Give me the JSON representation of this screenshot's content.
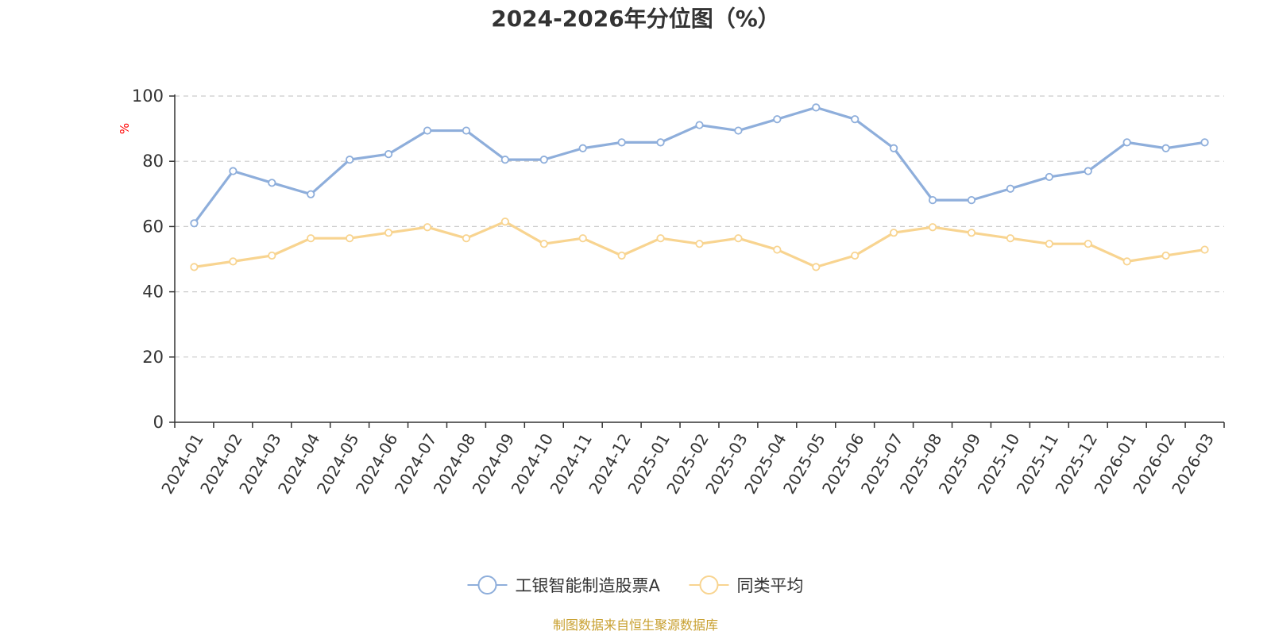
{
  "chart_data": {
    "type": "line",
    "title": "2024-2026年分位图（%）",
    "ylabel": "%",
    "xlabel": "",
    "ylim": [
      0,
      100
    ],
    "yticks": [
      0,
      20,
      40,
      60,
      80,
      100
    ],
    "grid": true,
    "legend_position": "bottom",
    "categories": [
      "2024-01",
      "2024-02",
      "2024-03",
      "2024-04",
      "2024-05",
      "2024-06",
      "2024-07",
      "2024-08",
      "2024-09",
      "2024-10",
      "2024-11",
      "2024-12",
      "2025-01",
      "2025-02",
      "2025-03",
      "2025-04",
      "2025-05",
      "2025-06",
      "2025-07",
      "2025-08",
      "2025-09",
      "2025-10",
      "2025-11",
      "2025-12",
      "2026-01",
      "2026-02",
      "2026-03"
    ],
    "series": [
      {
        "name": "工银智能制造股票A",
        "color": "#8eaedb",
        "values": [
          61.0,
          77.0,
          73.4,
          69.9,
          80.5,
          82.2,
          89.4,
          89.4,
          80.5,
          80.5,
          84.0,
          85.8,
          85.8,
          91.1,
          89.4,
          92.9,
          96.5,
          92.9,
          84.0,
          68.1,
          68.1,
          71.6,
          75.2,
          77.0,
          85.8,
          84.0,
          85.8
        ]
      },
      {
        "name": "同类平均",
        "color": "#f8d490",
        "values": [
          47.6,
          49.3,
          51.1,
          56.4,
          56.4,
          58.1,
          59.8,
          56.4,
          61.5,
          54.7,
          56.4,
          51.1,
          56.4,
          54.7,
          56.4,
          52.9,
          47.6,
          51.1,
          58.1,
          59.8,
          58.1,
          56.4,
          54.7,
          54.7,
          49.3,
          51.1,
          52.9
        ]
      }
    ]
  },
  "source_note": "制图数据来自恒生聚源数据库"
}
